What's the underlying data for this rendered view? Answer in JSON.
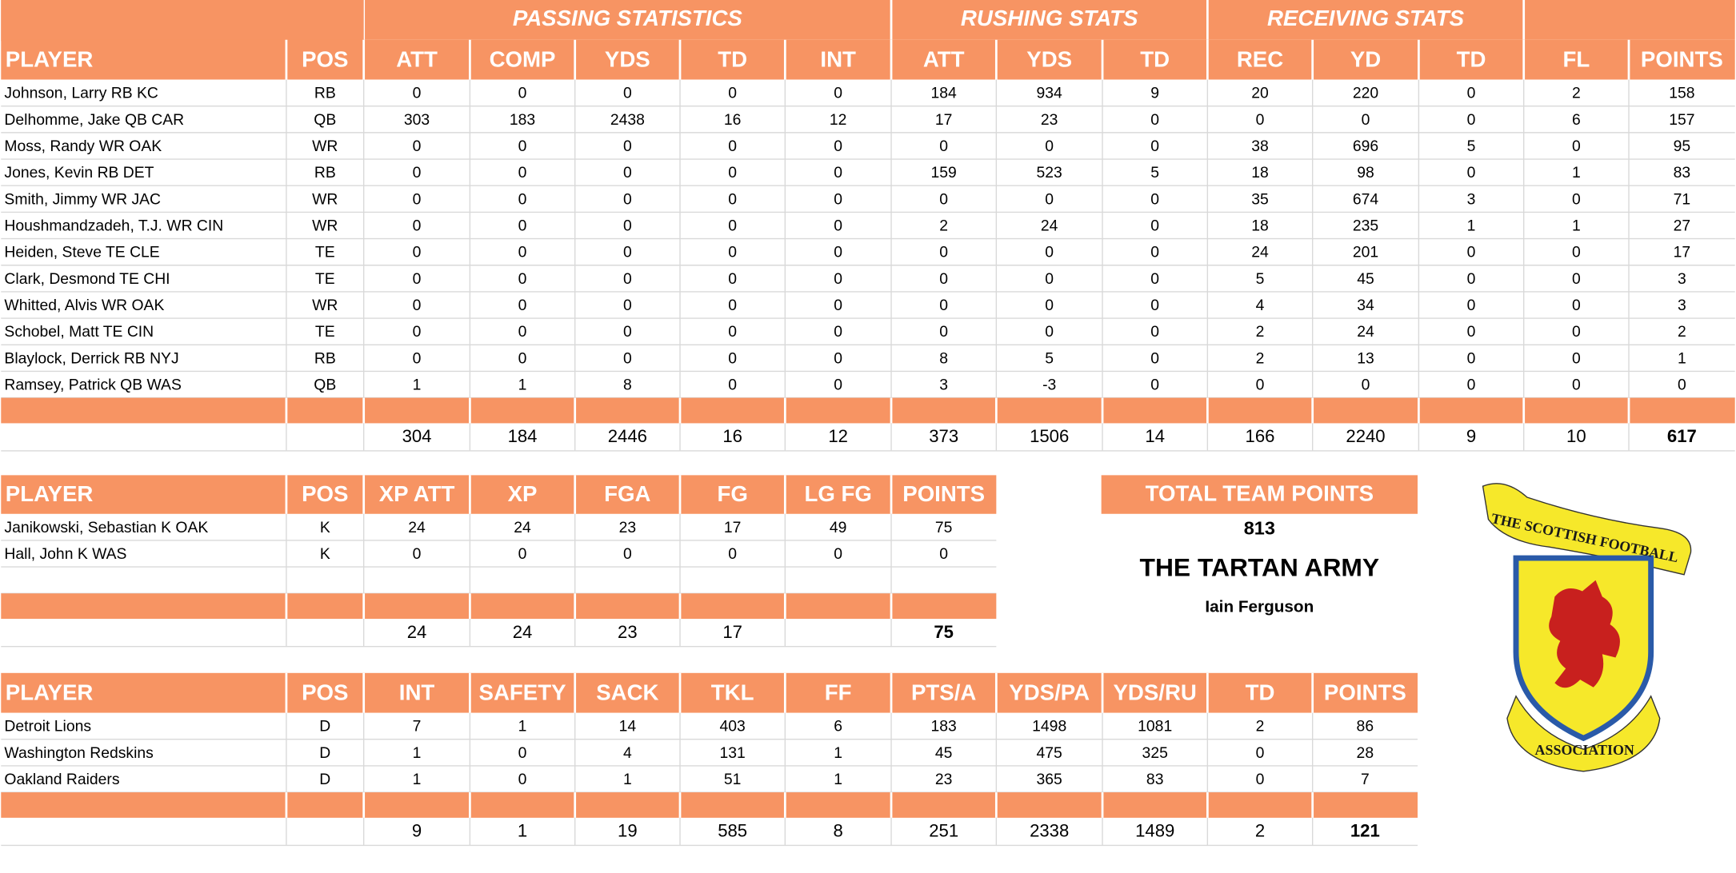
{
  "offense": {
    "group_headers": [
      "PASSING STATISTICS",
      "RUSHING STATS",
      "RECEIVING STATS"
    ],
    "columns": [
      "PLAYER",
      "POS",
      "ATT",
      "COMP",
      "YDS",
      "TD",
      "INT",
      "ATT",
      "YDS",
      "TD",
      "REC",
      "YD",
      "TD",
      "FL",
      "POINTS"
    ],
    "rows": [
      [
        "Johnson, Larry RB KC",
        "RB",
        0,
        0,
        0,
        0,
        0,
        184,
        934,
        9,
        20,
        220,
        0,
        2,
        158
      ],
      [
        "Delhomme, Jake QB CAR",
        "QB",
        303,
        183,
        2438,
        16,
        12,
        17,
        23,
        0,
        0,
        0,
        0,
        6,
        157
      ],
      [
        "Moss, Randy WR OAK",
        "WR",
        0,
        0,
        0,
        0,
        0,
        0,
        0,
        0,
        38,
        696,
        5,
        0,
        95
      ],
      [
        "Jones, Kevin RB DET",
        "RB",
        0,
        0,
        0,
        0,
        0,
        159,
        523,
        5,
        18,
        98,
        0,
        1,
        83
      ],
      [
        "Smith, Jimmy WR JAC",
        "WR",
        0,
        0,
        0,
        0,
        0,
        0,
        0,
        0,
        35,
        674,
        3,
        0,
        71
      ],
      [
        "Houshmandzadeh, T.J. WR CIN",
        "WR",
        0,
        0,
        0,
        0,
        0,
        2,
        24,
        0,
        18,
        235,
        1,
        1,
        27
      ],
      [
        "Heiden, Steve TE CLE",
        "TE",
        0,
        0,
        0,
        0,
        0,
        0,
        0,
        0,
        24,
        201,
        0,
        0,
        17
      ],
      [
        "Clark, Desmond TE CHI",
        "TE",
        0,
        0,
        0,
        0,
        0,
        0,
        0,
        0,
        5,
        45,
        0,
        0,
        3
      ],
      [
        "Whitted, Alvis WR OAK",
        "WR",
        0,
        0,
        0,
        0,
        0,
        0,
        0,
        0,
        4,
        34,
        0,
        0,
        3
      ],
      [
        "Schobel, Matt TE CIN",
        "TE",
        0,
        0,
        0,
        0,
        0,
        0,
        0,
        0,
        2,
        24,
        0,
        0,
        2
      ],
      [
        "Blaylock, Derrick RB NYJ",
        "RB",
        0,
        0,
        0,
        0,
        0,
        8,
        5,
        0,
        2,
        13,
        0,
        0,
        1
      ],
      [
        "Ramsey, Patrick QB WAS",
        "QB",
        1,
        1,
        8,
        0,
        0,
        3,
        -3,
        0,
        0,
        0,
        0,
        0,
        0
      ]
    ],
    "totals": [
      304,
      184,
      2446,
      16,
      12,
      373,
      1506,
      14,
      166,
      2240,
      9,
      10,
      617
    ]
  },
  "kicking": {
    "columns": [
      "PLAYER",
      "POS",
      "XP ATT",
      "XP",
      "FGA",
      "FG",
      "LG FG",
      "POINTS"
    ],
    "rows": [
      [
        "Janikowski, Sebastian K OAK",
        "K",
        24,
        24,
        23,
        17,
        49,
        75
      ],
      [
        "Hall, John K WAS",
        "K",
        0,
        0,
        0,
        0,
        0,
        0
      ]
    ],
    "totals": [
      24,
      24,
      23,
      17,
      null,
      75
    ]
  },
  "team": {
    "header": "TOTAL TEAM POINTS",
    "points": 813,
    "name": "THE TARTAN ARMY",
    "owner": "Iain Ferguson"
  },
  "defense": {
    "columns": [
      "PLAYER",
      "POS",
      "INT",
      "SAFETY",
      "SACK",
      "TKL",
      "FF",
      "PTS/A",
      "YDS/PA",
      "YDS/RU",
      "TD",
      "POINTS"
    ],
    "rows": [
      [
        "Detroit Lions",
        "D",
        7,
        1,
        14,
        403,
        6,
        183,
        1498,
        1081,
        2,
        86
      ],
      [
        "Washington Redskins",
        "D",
        1,
        0,
        4,
        131,
        1,
        45,
        475,
        325,
        0,
        28
      ],
      [
        "Oakland Raiders",
        "D",
        1,
        0,
        1,
        51,
        1,
        23,
        365,
        83,
        0,
        7
      ]
    ],
    "totals": [
      9,
      1,
      19,
      585,
      8,
      251,
      2338,
      1489,
      2,
      121
    ]
  },
  "logo": {
    "top": "THE SCOTTISH FOOTBALL",
    "bottom": "ASSOCIATION"
  }
}
